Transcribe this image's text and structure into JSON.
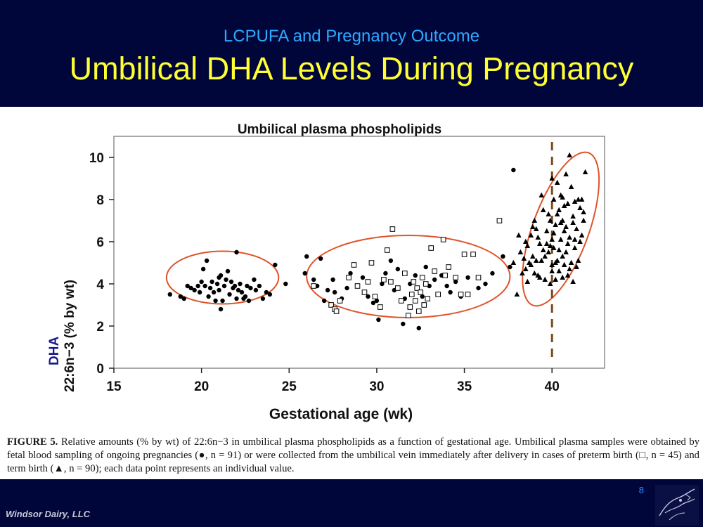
{
  "header": {
    "supertitle": "LCPUFA and Pregnancy Outcome",
    "title": "Umbilical DHA Levels During Pregnancy"
  },
  "caption": {
    "label": "FIGURE 5.",
    "text_part1": " Relative amounts (% by wt) of 22:6n−3 in umbilical plasma phospholipids as a function of gestational age. Umbilical plasma samples were obtained by fetal blood sampling of ongoing pregnancies (",
    "filled_circle": "●",
    "text_part2": ", n = 91) or were collected from the umbilical vein immediately after delivery in cases of preterm birth (",
    "open_square": "□",
    "text_part3": ", n = 45) and term birth (",
    "filled_triangle": "▲",
    "text_part4": ", n = 90); each data point represents an individual value."
  },
  "footer": {
    "page_number": "8",
    "company": "Windsor Dairy, LLC",
    "logo_icon": "bird-sketch-icon"
  },
  "colors": {
    "header_bg": "#00063a",
    "supertitle": "#2ea9ff",
    "title": "#ffff33",
    "ellipse": "#e0532a",
    "dashed_line": "#7a4a1c",
    "dha_label": "#1a1a8c"
  },
  "chart_data": {
    "type": "scatter",
    "title": "Umbilical plasma phospholipids",
    "xlabel": "Gestational age (wk)",
    "ylabel_top": "DHA",
    "ylabel_bottom": "22:6n−3 (% by wt)",
    "xlim": [
      15,
      43
    ],
    "ylim": [
      0,
      11
    ],
    "xticks": [
      15,
      20,
      25,
      30,
      35,
      40
    ],
    "yticks": [
      0,
      2,
      4,
      6,
      8,
      10
    ],
    "reference_line": {
      "x": 40,
      "style": "dashed"
    },
    "ellipses": [
      {
        "cx": 21.2,
        "cy": 4.3,
        "rx": 3.2,
        "ry": 1.25
      },
      {
        "cx": 31.8,
        "cy": 4.35,
        "rx": 5.8,
        "ry": 1.95
      },
      {
        "cx": 40.5,
        "cy": 6.6,
        "rx": 1.6,
        "ry": 3.85,
        "rotate_deg": 20
      }
    ],
    "series": [
      {
        "marker": "filled-circle",
        "points": [
          [
            18.2,
            3.5
          ],
          [
            18.8,
            3.4
          ],
          [
            19.0,
            3.3
          ],
          [
            19.2,
            3.9
          ],
          [
            19.4,
            3.8
          ],
          [
            19.6,
            3.7
          ],
          [
            19.8,
            3.9
          ],
          [
            19.9,
            3.6
          ],
          [
            20.0,
            4.1
          ],
          [
            20.1,
            4.7
          ],
          [
            20.2,
            3.9
          ],
          [
            20.3,
            5.1
          ],
          [
            20.4,
            3.4
          ],
          [
            20.5,
            3.8
          ],
          [
            20.6,
            4.1
          ],
          [
            20.7,
            3.6
          ],
          [
            20.8,
            3.2
          ],
          [
            20.9,
            4.0
          ],
          [
            21.0,
            4.3
          ],
          [
            21.0,
            3.7
          ],
          [
            21.1,
            2.8
          ],
          [
            21.1,
            4.4
          ],
          [
            21.2,
            3.2
          ],
          [
            21.3,
            3.9
          ],
          [
            21.4,
            4.2
          ],
          [
            21.5,
            4.6
          ],
          [
            21.6,
            3.5
          ],
          [
            21.7,
            4.1
          ],
          [
            21.8,
            3.8
          ],
          [
            21.9,
            3.9
          ],
          [
            22.0,
            3.3
          ],
          [
            22.0,
            5.5
          ],
          [
            22.1,
            3.7
          ],
          [
            22.2,
            4.0
          ],
          [
            22.3,
            3.6
          ],
          [
            22.4,
            3.3
          ],
          [
            22.5,
            3.4
          ],
          [
            22.6,
            3.9
          ],
          [
            22.7,
            3.2
          ],
          [
            22.8,
            3.8
          ],
          [
            23.0,
            4.2
          ],
          [
            23.1,
            3.7
          ],
          [
            23.3,
            3.9
          ],
          [
            23.5,
            3.3
          ],
          [
            23.7,
            3.6
          ],
          [
            23.9,
            3.5
          ],
          [
            24.2,
            4.9
          ],
          [
            24.8,
            4.0
          ],
          [
            25.9,
            4.5
          ],
          [
            26.0,
            5.3
          ],
          [
            26.4,
            4.2
          ],
          [
            26.6,
            3.9
          ],
          [
            26.8,
            5.2
          ],
          [
            27.0,
            3.2
          ],
          [
            27.2,
            3.7
          ],
          [
            27.5,
            4.2
          ],
          [
            27.6,
            3.6
          ],
          [
            28.0,
            3.3
          ],
          [
            28.3,
            3.8
          ],
          [
            28.5,
            4.5
          ],
          [
            29.2,
            4.3
          ],
          [
            29.5,
            3.4
          ],
          [
            29.8,
            3.1
          ],
          [
            30.0,
            3.2
          ],
          [
            30.1,
            2.3
          ],
          [
            30.3,
            4.0
          ],
          [
            30.5,
            4.5
          ],
          [
            30.8,
            5.1
          ],
          [
            31.0,
            3.7
          ],
          [
            31.2,
            4.7
          ],
          [
            31.5,
            2.1
          ],
          [
            31.6,
            3.3
          ],
          [
            31.9,
            4.0
          ],
          [
            32.2,
            4.4
          ],
          [
            32.4,
            1.9
          ],
          [
            32.6,
            3.4
          ],
          [
            32.8,
            4.8
          ],
          [
            33.0,
            3.9
          ],
          [
            33.3,
            4.2
          ],
          [
            33.7,
            4.4
          ],
          [
            34.0,
            3.9
          ],
          [
            34.2,
            3.6
          ],
          [
            34.5,
            4.1
          ],
          [
            34.8,
            3.4
          ],
          [
            35.2,
            4.3
          ],
          [
            35.8,
            3.8
          ],
          [
            36.2,
            4.0
          ],
          [
            36.6,
            4.5
          ],
          [
            37.2,
            5.3
          ],
          [
            37.6,
            4.8
          ],
          [
            37.8,
            9.4
          ]
        ]
      },
      {
        "marker": "open-square",
        "points": [
          [
            26.4,
            3.9
          ],
          [
            27.4,
            3.0
          ],
          [
            27.6,
            2.8
          ],
          [
            27.7,
            2.7
          ],
          [
            27.9,
            3.2
          ],
          [
            28.4,
            4.3
          ],
          [
            28.7,
            4.9
          ],
          [
            28.9,
            3.9
          ],
          [
            29.3,
            3.6
          ],
          [
            29.5,
            4.1
          ],
          [
            29.7,
            5.0
          ],
          [
            29.9,
            3.4
          ],
          [
            30.2,
            2.9
          ],
          [
            30.4,
            4.2
          ],
          [
            30.6,
            5.6
          ],
          [
            30.8,
            4.1
          ],
          [
            30.9,
            6.6
          ],
          [
            31.2,
            3.8
          ],
          [
            31.4,
            3.2
          ],
          [
            31.6,
            4.5
          ],
          [
            31.8,
            2.5
          ],
          [
            31.9,
            2.9
          ],
          [
            32.0,
            3.5
          ],
          [
            32.1,
            4.1
          ],
          [
            32.2,
            3.2
          ],
          [
            32.3,
            3.8
          ],
          [
            32.4,
            2.7
          ],
          [
            32.5,
            3.6
          ],
          [
            32.6,
            4.3
          ],
          [
            32.7,
            3.0
          ],
          [
            32.8,
            4.0
          ],
          [
            32.9,
            3.3
          ],
          [
            33.1,
            5.7
          ],
          [
            33.3,
            4.6
          ],
          [
            33.5,
            3.5
          ],
          [
            33.8,
            6.1
          ],
          [
            33.9,
            4.4
          ],
          [
            34.1,
            4.8
          ],
          [
            34.5,
            4.3
          ],
          [
            34.8,
            3.5
          ],
          [
            35.0,
            5.4
          ],
          [
            35.2,
            3.5
          ],
          [
            35.5,
            5.4
          ],
          [
            35.8,
            4.3
          ],
          [
            37.0,
            7.0
          ]
        ]
      },
      {
        "marker": "filled-triangle",
        "points": [
          [
            37.8,
            5.0
          ],
          [
            38.0,
            3.5
          ],
          [
            38.1,
            6.3
          ],
          [
            38.2,
            5.5
          ],
          [
            38.4,
            5.2
          ],
          [
            38.5,
            4.7
          ],
          [
            38.6,
            5.8
          ],
          [
            38.7,
            5.0
          ],
          [
            38.8,
            6.3
          ],
          [
            38.9,
            5.3
          ],
          [
            39.0,
            4.5
          ],
          [
            39.1,
            6.6
          ],
          [
            39.2,
            4.4
          ],
          [
            39.3,
            5.9
          ],
          [
            39.4,
            5.1
          ],
          [
            39.5,
            7.5
          ],
          [
            39.6,
            4.2
          ],
          [
            39.7,
            6.5
          ],
          [
            39.8,
            5.5
          ],
          [
            39.9,
            4.0
          ],
          [
            39.9,
            7.0
          ],
          [
            40.0,
            6.1
          ],
          [
            40.0,
            4.6
          ],
          [
            40.1,
            8.0
          ],
          [
            40.1,
            5.7
          ],
          [
            40.2,
            4.2
          ],
          [
            40.2,
            6.8
          ],
          [
            40.3,
            8.8
          ],
          [
            40.3,
            5.1
          ],
          [
            40.4,
            7.5
          ],
          [
            40.4,
            4.6
          ],
          [
            40.5,
            6.1
          ],
          [
            40.5,
            8.2
          ],
          [
            40.6,
            5.3
          ],
          [
            40.6,
            7.0
          ],
          [
            40.7,
            4.9
          ],
          [
            40.7,
            6.5
          ],
          [
            40.8,
            9.2
          ],
          [
            40.8,
            5.5
          ],
          [
            40.9,
            7.8
          ],
          [
            40.9,
            4.4
          ],
          [
            41.0,
            10.1
          ],
          [
            41.0,
            6.2
          ],
          [
            41.1,
            8.6
          ],
          [
            41.1,
            5.0
          ],
          [
            41.2,
            7.2
          ],
          [
            41.2,
            4.1
          ],
          [
            41.3,
            7.9
          ],
          [
            41.3,
            5.7
          ],
          [
            41.4,
            6.6
          ],
          [
            41.5,
            8.0
          ],
          [
            41.5,
            5.1
          ],
          [
            41.6,
            7.6
          ],
          [
            41.7,
            6.3
          ],
          [
            41.8,
            7.4
          ],
          [
            41.9,
            9.3
          ],
          [
            38.3,
            4.5
          ],
          [
            39.0,
            7.0
          ],
          [
            40.0,
            9.0
          ],
          [
            41.4,
            4.8
          ],
          [
            38.6,
            4.1
          ],
          [
            39.3,
            4.3
          ],
          [
            40.6,
            4.3
          ],
          [
            40.3,
            7.3
          ],
          [
            39.7,
            5.9
          ],
          [
            39.4,
            8.2
          ],
          [
            38.9,
            6.7
          ],
          [
            40.9,
            5.9
          ],
          [
            41.7,
            8.0
          ],
          [
            40.1,
            6.4
          ],
          [
            39.6,
            5.3
          ],
          [
            40.4,
            5.6
          ],
          [
            41.2,
            6.9
          ],
          [
            38.8,
            4.9
          ],
          [
            39.1,
            5.1
          ],
          [
            40.7,
            7.7
          ],
          [
            41.6,
            6.0
          ],
          [
            39.8,
            7.3
          ],
          [
            40.2,
            5.0
          ],
          [
            41.0,
            4.7
          ],
          [
            38.5,
            6.0
          ],
          [
            39.5,
            5.6
          ],
          [
            40.5,
            6.9
          ],
          [
            41.3,
            6.1
          ],
          [
            39.2,
            6.2
          ],
          [
            40.8,
            6.7
          ],
          [
            41.8,
            7.0
          ],
          [
            39.9,
            5.8
          ],
          [
            40.0,
            4.9
          ],
          [
            40.6,
            8.1
          ]
        ]
      }
    ]
  }
}
